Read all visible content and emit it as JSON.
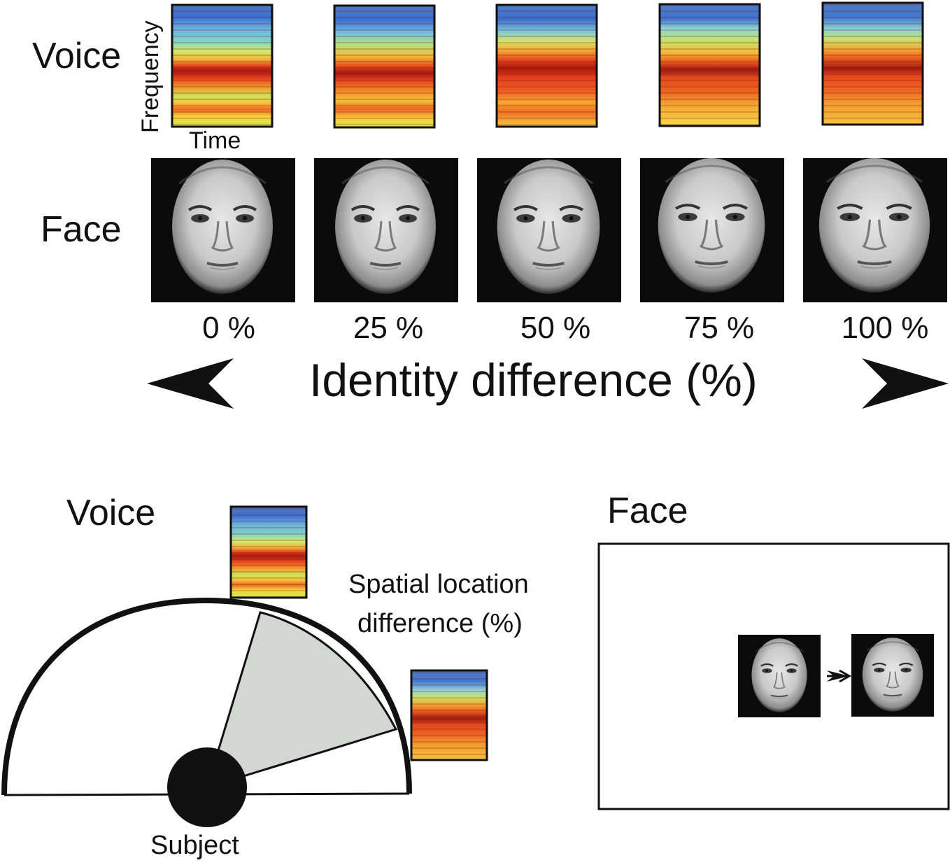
{
  "voice_label": "Voice",
  "face_label": "Face",
  "axis_y_label": "Frequency",
  "axis_x_label": "Time",
  "morph_steps": [
    "0 %",
    "25 %",
    "50 %",
    "75 %",
    "100 %"
  ],
  "identity_axis_title": "Identity difference (%)",
  "bottom_voice_label": "Voice",
  "bottom_face_label": "Face",
  "spatial_line1": "Spatial location",
  "spatial_line2": "difference (%)",
  "subject_label": "Subject",
  "colors": {
    "outline": "#111111",
    "sector_fill": "#d3d6d3",
    "spectrogram_low": "#3f73c9",
    "spectrogram_mid": "#f5e33a",
    "spectrogram_high": "#d8281c"
  }
}
